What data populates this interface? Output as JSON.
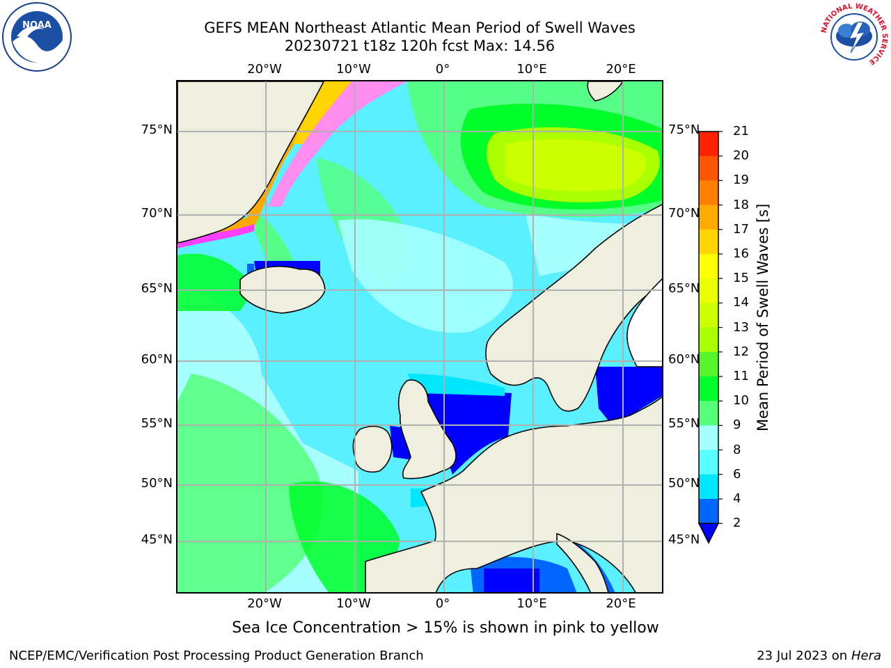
{
  "title": {
    "line1": "GEFS MEAN Northeast Atlantic Mean Period of Swell Waves",
    "line2": "20230721 t18z 120h fcst   Max: 14.56"
  },
  "map": {
    "region": "Northeast Atlantic",
    "lon_range": [
      -30,
      25
    ],
    "lat_range": [
      41,
      78
    ],
    "lon_ticks": [
      "20°W",
      "10°W",
      "0°",
      "10°E",
      "20°E"
    ],
    "lat_ticks": [
      "75°N",
      "70°N",
      "65°N",
      "60°N",
      "55°N",
      "50°N",
      "45°N"
    ],
    "gridlines": true,
    "land_color": "#efefdf",
    "lake_color": "#ffffff"
  },
  "colorbar": {
    "label": "Mean Period of Swell Waves [s]",
    "tick_labels": [
      "2",
      "4",
      "6",
      "8",
      "9",
      "10",
      "11",
      "12",
      "13",
      "14",
      "15",
      "16",
      "17",
      "18",
      "19",
      "20",
      "21"
    ],
    "levels": [
      2,
      4,
      6,
      8,
      9,
      10,
      11,
      12,
      13,
      14,
      15,
      16,
      17,
      18,
      19,
      20,
      21
    ],
    "colors": [
      "#0066ff",
      "#00e6ff",
      "#55ffff",
      "#a5ffff",
      "#55ff7a",
      "#00ff2a",
      "#55f52a",
      "#aaff00",
      "#ccff00",
      "#e8ff00",
      "#ffff00",
      "#ffd400",
      "#ffaa00",
      "#ff8000",
      "#ff5500",
      "#ff2200"
    ],
    "under_color": "#0000ff",
    "extend": "min"
  },
  "notes": {
    "ice": "Sea Ice Concentration > 15% is shown in pink to yellow"
  },
  "footer": {
    "left": "NCEP/EMC/Verification Post Processing Product Generation Branch",
    "right_prefix": "23 Jul 2023 on ",
    "right_machine": "Hera"
  },
  "logos": {
    "noaa": "NOAA",
    "nws_ring": "NATIONAL WEATHER SERVICE"
  }
}
